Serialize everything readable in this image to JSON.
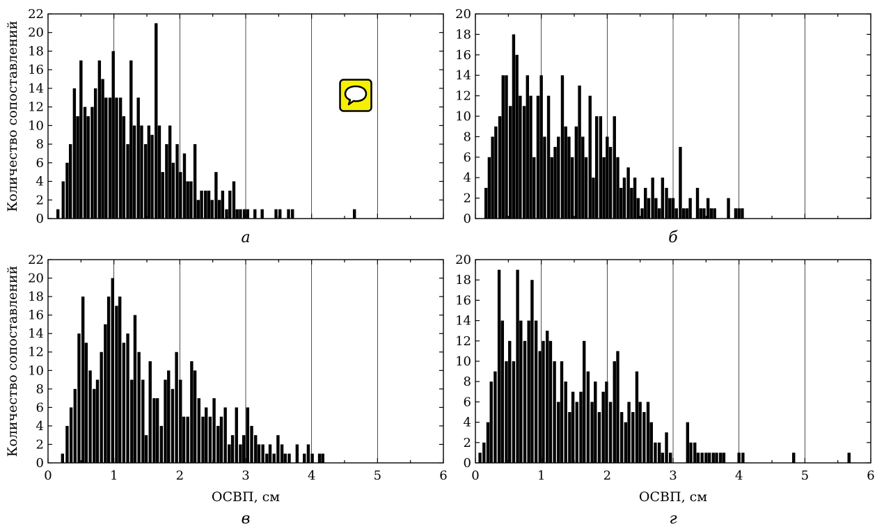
{
  "figure": {
    "ylabel": "Количество сопоставлений",
    "xlabel": "ОСВП, см",
    "colors": {
      "bar": "#000000",
      "grid": "#000000",
      "badge_fill": "#f6f000",
      "badge_stroke": "#000000"
    },
    "badge_icon": "speech-bubble-icon"
  },
  "chart_data": [
    {
      "type": "bar",
      "panel": "а",
      "ylabel": "Количество сопоставлений",
      "xlabel": "",
      "xlim": [
        0,
        6
      ],
      "ylim": [
        0,
        22
      ],
      "yticks": [
        0,
        2,
        4,
        6,
        8,
        10,
        12,
        14,
        16,
        18,
        20,
        22
      ],
      "xticks": [
        0,
        1,
        2,
        3,
        4,
        5,
        6
      ],
      "show_x_tick_labels": false,
      "grid": "vertical",
      "x": [
        0.15,
        0.23,
        0.29,
        0.34,
        0.4,
        0.45,
        0.5,
        0.56,
        0.61,
        0.67,
        0.72,
        0.78,
        0.83,
        0.88,
        0.94,
        0.99,
        1.04,
        1.1,
        1.15,
        1.21,
        1.26,
        1.31,
        1.37,
        1.42,
        1.48,
        1.53,
        1.58,
        1.64,
        1.69,
        1.74,
        1.8,
        1.85,
        1.9,
        1.96,
        2.01,
        2.07,
        2.12,
        2.17,
        2.23,
        2.28,
        2.33,
        2.39,
        2.44,
        2.49,
        2.55,
        2.6,
        2.65,
        2.71,
        2.76,
        2.82,
        2.87,
        2.92,
        2.98,
        3.03,
        3.14,
        3.25,
        3.46,
        3.52,
        3.65,
        3.71,
        4.65
      ],
      "values": [
        1,
        4,
        6,
        8,
        14,
        11,
        17,
        12,
        11,
        12,
        14,
        17,
        15,
        13,
        13,
        18,
        13,
        13,
        11,
        8,
        17,
        10,
        13,
        10,
        8,
        10,
        9,
        21,
        10,
        5,
        8,
        10,
        6,
        8,
        5,
        7,
        4,
        4,
        8,
        2,
        3,
        3,
        3,
        2,
        5,
        2,
        3,
        1,
        3,
        4,
        1,
        1,
        1,
        1,
        1,
        1,
        1,
        1,
        1,
        1,
        1
      ]
    },
    {
      "type": "bar",
      "panel": "б",
      "ylabel": "",
      "xlabel": "",
      "xlim": [
        0,
        6
      ],
      "ylim": [
        0,
        20
      ],
      "yticks": [
        0,
        2,
        4,
        6,
        8,
        10,
        12,
        14,
        16,
        18,
        20
      ],
      "xticks": [
        0,
        1,
        2,
        3,
        4,
        5,
        6
      ],
      "show_x_tick_labels": false,
      "grid": "vertical",
      "x": [
        0.16,
        0.21,
        0.26,
        0.31,
        0.37,
        0.42,
        0.47,
        0.53,
        0.58,
        0.63,
        0.68,
        0.74,
        0.79,
        0.84,
        0.89,
        0.95,
        1.0,
        1.05,
        1.11,
        1.16,
        1.21,
        1.26,
        1.32,
        1.37,
        1.42,
        1.47,
        1.53,
        1.58,
        1.63,
        1.68,
        1.74,
        1.79,
        1.84,
        1.9,
        1.95,
        2.0,
        2.05,
        2.11,
        2.16,
        2.21,
        2.26,
        2.32,
        2.37,
        2.42,
        2.47,
        2.53,
        2.58,
        2.63,
        2.69,
        2.74,
        2.79,
        2.84,
        2.9,
        2.95,
        3.0,
        3.05,
        3.11,
        3.16,
        3.21,
        3.26,
        3.37,
        3.42,
        3.47,
        3.53,
        3.58,
        3.63,
        3.84,
        3.95,
        4.0,
        4.05
      ],
      "values": [
        3,
        6,
        8,
        9,
        10,
        14,
        14,
        11,
        18,
        16,
        12,
        11,
        14,
        12,
        6,
        12,
        14,
        8,
        12,
        6,
        7,
        8,
        14,
        9,
        8,
        6,
        9,
        13,
        8,
        6,
        12,
        4,
        10,
        10,
        6,
        8,
        7,
        10,
        6,
        3,
        4,
        5,
        3,
        4,
        2,
        1,
        3,
        2,
        4,
        2,
        1,
        4,
        3,
        2,
        2,
        1,
        7,
        1,
        1,
        2,
        3,
        1,
        1,
        2,
        1,
        1,
        2,
        1,
        1,
        1
      ]
    },
    {
      "type": "bar",
      "panel": "в",
      "ylabel": "Количество сопоставлений",
      "xlabel": "ОСВП, см",
      "xlim": [
        0,
        6
      ],
      "ylim": [
        0,
        22
      ],
      "yticks": [
        0,
        2,
        4,
        6,
        8,
        10,
        12,
        14,
        16,
        18,
        20,
        22
      ],
      "xticks": [
        0,
        1,
        2,
        3,
        4,
        5,
        6
      ],
      "show_x_tick_labels": true,
      "grid": "vertical",
      "x": [
        0.22,
        0.29,
        0.35,
        0.41,
        0.47,
        0.53,
        0.58,
        0.64,
        0.7,
        0.75,
        0.81,
        0.87,
        0.92,
        0.98,
        1.04,
        1.09,
        1.15,
        1.21,
        1.27,
        1.32,
        1.38,
        1.44,
        1.49,
        1.55,
        1.61,
        1.66,
        1.72,
        1.78,
        1.83,
        1.89,
        1.95,
        2.01,
        2.06,
        2.12,
        2.18,
        2.23,
        2.29,
        2.35,
        2.4,
        2.46,
        2.52,
        2.58,
        2.63,
        2.69,
        2.75,
        2.8,
        2.86,
        2.92,
        2.97,
        3.03,
        3.09,
        3.15,
        3.2,
        3.26,
        3.32,
        3.37,
        3.43,
        3.49,
        3.55,
        3.6,
        3.66,
        3.78,
        3.89,
        3.95,
        4.01,
        4.12,
        4.17
      ],
      "values": [
        1,
        4,
        6,
        8,
        14,
        18,
        13,
        10,
        8,
        9,
        12,
        15,
        18,
        20,
        17,
        18,
        13,
        14,
        9,
        16,
        12,
        9,
        3,
        11,
        7,
        7,
        4,
        9,
        10,
        8,
        12,
        9,
        5,
        5,
        11,
        10,
        7,
        5,
        6,
        5,
        7,
        4,
        5,
        6,
        2,
        3,
        6,
        2,
        3,
        6,
        4,
        3,
        2,
        2,
        1,
        2,
        1,
        3,
        2,
        1,
        1,
        2,
        1,
        2,
        1,
        1,
        1
      ]
    },
    {
      "type": "bar",
      "panel": "г",
      "ylabel": "",
      "xlabel": "ОСВП, см",
      "xlim": [
        0,
        6
      ],
      "ylim": [
        0,
        20
      ],
      "yticks": [
        0,
        2,
        4,
        6,
        8,
        10,
        12,
        14,
        16,
        18,
        20
      ],
      "xticks": [
        0,
        1,
        2,
        3,
        4,
        5,
        6
      ],
      "show_x_tick_labels": true,
      "grid": "vertical",
      "x": [
        0.07,
        0.13,
        0.19,
        0.24,
        0.3,
        0.36,
        0.41,
        0.47,
        0.52,
        0.58,
        0.64,
        0.69,
        0.75,
        0.81,
        0.86,
        0.92,
        0.98,
        1.03,
        1.09,
        1.14,
        1.2,
        1.26,
        1.31,
        1.37,
        1.43,
        1.48,
        1.54,
        1.6,
        1.65,
        1.71,
        1.77,
        1.82,
        1.88,
        1.94,
        1.99,
        2.05,
        2.11,
        2.16,
        2.22,
        2.28,
        2.33,
        2.39,
        2.45,
        2.5,
        2.56,
        2.62,
        2.67,
        2.73,
        2.79,
        2.84,
        2.9,
        2.96,
        3.22,
        3.27,
        3.33,
        3.38,
        3.44,
        3.5,
        3.55,
        3.61,
        3.66,
        3.72,
        3.77,
        4.0,
        4.06,
        4.83,
        5.67
      ],
      "values": [
        1,
        2,
        4,
        8,
        9,
        19,
        14,
        10,
        12,
        10,
        19,
        14,
        12,
        14,
        18,
        14,
        11,
        12,
        13,
        12,
        10,
        6,
        10,
        8,
        5,
        7,
        6,
        7,
        12,
        9,
        6,
        8,
        5,
        7,
        8,
        6,
        10,
        11,
        5,
        4,
        6,
        5,
        9,
        6,
        5,
        6,
        4,
        2,
        2,
        1,
        3,
        1,
        4,
        2,
        2,
        1,
        1,
        1,
        1,
        1,
        1,
        1,
        1,
        1,
        1,
        1,
        1
      ]
    }
  ]
}
